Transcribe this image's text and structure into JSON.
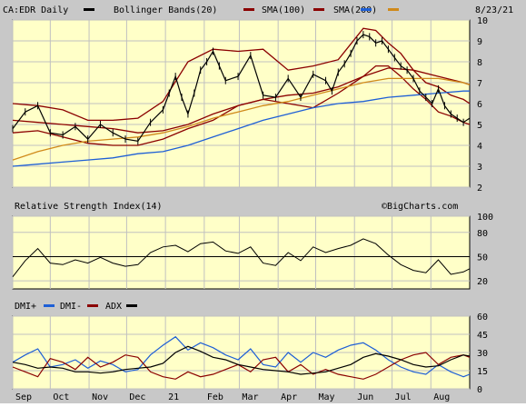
{
  "chart_data": [
    {
      "type": "line",
      "title": "CA:EDR Daily",
      "date": "8/23/21",
      "legend": [
        {
          "name": "CA:EDR Daily",
          "color": "#000000"
        },
        {
          "name": "Bollinger Bands(20)",
          "color": "#8b0000"
        },
        {
          "name": "SMA(100)",
          "color": "#8b0000"
        },
        {
          "name": "SMA(200)",
          "color": "#d08a1a"
        },
        {
          "name": "",
          "color": "#1e5fd6"
        }
      ],
      "ylim": [
        2,
        10
      ],
      "yticks": [
        2,
        3,
        4,
        5,
        6,
        7,
        8,
        9,
        10
      ],
      "x_labels": [
        {
          "label": "Sep",
          "day": 0
        },
        {
          "label": "Oct",
          "day": 30
        },
        {
          "label": "Nov",
          "day": 61
        },
        {
          "label": "Dec",
          "day": 91
        },
        {
          "label": "21",
          "day": 122
        },
        {
          "label": "Feb",
          "day": 153
        },
        {
          "label": "Mar",
          "day": 181
        },
        {
          "label": "Apr",
          "day": 212
        },
        {
          "label": "May",
          "day": 242
        },
        {
          "label": "Jun",
          "day": 273
        },
        {
          "label": "Jul",
          "day": 303
        },
        {
          "label": "Aug",
          "day": 334
        }
      ],
      "series": [
        {
          "name": "CA:EDR Daily",
          "x": [
            0,
            10,
            20,
            30,
            40,
            50,
            60,
            70,
            80,
            90,
            100,
            110,
            120,
            125,
            130,
            135,
            140,
            145,
            150,
            155,
            160,
            165,
            170,
            180,
            190,
            200,
            210,
            220,
            230,
            240,
            250,
            255,
            260,
            265,
            270,
            275,
            280,
            285,
            290,
            295,
            300,
            305,
            310,
            315,
            320,
            325,
            330,
            335,
            340,
            345,
            350,
            355,
            360,
            365
          ],
          "values": [
            4.8,
            5.6,
            5.9,
            4.6,
            4.5,
            4.9,
            4.3,
            5.0,
            4.6,
            4.3,
            4.2,
            5.1,
            5.7,
            6.5,
            7.3,
            6.3,
            5.5,
            6.5,
            7.6,
            8.0,
            8.5,
            7.8,
            7.1,
            7.3,
            8.3,
            6.4,
            6.3,
            7.2,
            6.3,
            7.4,
            7.1,
            6.6,
            7.5,
            7.9,
            8.4,
            9.0,
            9.3,
            9.2,
            8.9,
            9.0,
            8.6,
            8.2,
            7.8,
            7.6,
            7.2,
            6.6,
            6.3,
            6.0,
            6.7,
            5.9,
            5.5,
            5.3,
            5.1,
            5.3
          ]
        },
        {
          "name": "Bollinger Upper",
          "x": [
            0,
            20,
            40,
            60,
            80,
            100,
            120,
            140,
            160,
            180,
            200,
            220,
            240,
            260,
            280,
            290,
            300,
            310,
            320,
            330,
            340,
            350,
            360,
            365
          ],
          "values": [
            6.0,
            5.9,
            5.7,
            5.2,
            5.2,
            5.3,
            6.1,
            8.0,
            8.6,
            8.5,
            8.6,
            7.6,
            7.8,
            8.1,
            9.6,
            9.5,
            8.9,
            8.4,
            7.6,
            7.0,
            6.8,
            6.4,
            6.2,
            6.0
          ]
        },
        {
          "name": "Bollinger Lower",
          "x": [
            0,
            20,
            40,
            60,
            80,
            100,
            120,
            140,
            160,
            180,
            200,
            220,
            240,
            260,
            280,
            290,
            300,
            310,
            320,
            330,
            340,
            350,
            360,
            365
          ],
          "values": [
            4.6,
            4.7,
            4.4,
            4.1,
            4.0,
            4.0,
            4.3,
            4.8,
            5.2,
            5.9,
            6.2,
            6.0,
            5.8,
            6.5,
            7.3,
            7.8,
            7.8,
            7.3,
            6.7,
            6.2,
            5.6,
            5.4,
            5.1,
            5.0
          ]
        },
        {
          "name": "SMA(100)",
          "x": [
            0,
            20,
            40,
            60,
            80,
            100,
            120,
            140,
            160,
            180,
            200,
            220,
            240,
            260,
            280,
            300,
            320,
            340,
            360,
            365
          ],
          "values": [
            5.2,
            5.1,
            5.0,
            4.9,
            4.8,
            4.6,
            4.7,
            5.0,
            5.5,
            5.9,
            6.2,
            6.4,
            6.5,
            6.8,
            7.3,
            7.7,
            7.6,
            7.3,
            7.0,
            6.9
          ]
        },
        {
          "name": "SMA(200)",
          "x": [
            0,
            20,
            40,
            60,
            80,
            100,
            120,
            140,
            160,
            180,
            200,
            220,
            240,
            260,
            280,
            300,
            320,
            340,
            360,
            365
          ],
          "values": [
            3.3,
            3.7,
            4.0,
            4.2,
            4.3,
            4.4,
            4.6,
            4.9,
            5.3,
            5.6,
            5.9,
            6.1,
            6.4,
            6.7,
            7.0,
            7.2,
            7.2,
            7.2,
            7.0,
            6.9
          ]
        },
        {
          "name": "",
          "x": [
            0,
            20,
            40,
            60,
            80,
            100,
            120,
            140,
            160,
            180,
            200,
            220,
            240,
            260,
            280,
            300,
            320,
            340,
            360,
            365
          ],
          "values": [
            3.0,
            3.1,
            3.2,
            3.3,
            3.4,
            3.6,
            3.7,
            4.0,
            4.4,
            4.8,
            5.2,
            5.5,
            5.8,
            6.0,
            6.1,
            6.3,
            6.4,
            6.5,
            6.6,
            6.6
          ]
        }
      ]
    },
    {
      "type": "line",
      "title": "Relative Strength Index(14)",
      "watermark": "©BigCharts.com",
      "ylim": [
        10,
        100
      ],
      "yticks": [
        20,
        50,
        80,
        100
      ],
      "reference_line": 50,
      "series": [
        {
          "name": "RSI",
          "x": [
            0,
            10,
            20,
            30,
            40,
            50,
            60,
            70,
            80,
            90,
            100,
            110,
            120,
            130,
            140,
            150,
            160,
            170,
            180,
            190,
            200,
            210,
            220,
            230,
            240,
            250,
            260,
            270,
            280,
            290,
            300,
            310,
            320,
            330,
            340,
            350,
            360,
            365
          ],
          "values": [
            25,
            45,
            60,
            42,
            40,
            46,
            42,
            49,
            42,
            38,
            40,
            55,
            62,
            64,
            56,
            66,
            68,
            57,
            54,
            62,
            42,
            39,
            55,
            45,
            62,
            55,
            60,
            64,
            72,
            66,
            52,
            40,
            33,
            30,
            46,
            28,
            31,
            35
          ]
        }
      ]
    },
    {
      "type": "line",
      "title": "",
      "ylim": [
        0,
        60
      ],
      "yticks": [
        0,
        15,
        30,
        45,
        60
      ],
      "legend": [
        {
          "name": "DMI+",
          "color": "#1e5fd6"
        },
        {
          "name": "DMI-",
          "color": "#8b0000"
        },
        {
          "name": "ADX",
          "color": "#000000"
        }
      ],
      "series": [
        {
          "name": "DMI+",
          "x": [
            0,
            10,
            20,
            30,
            40,
            50,
            60,
            70,
            80,
            90,
            100,
            110,
            120,
            130,
            140,
            150,
            160,
            170,
            180,
            190,
            200,
            210,
            220,
            230,
            240,
            250,
            260,
            270,
            280,
            290,
            300,
            310,
            320,
            330,
            340,
            350,
            360,
            365
          ],
          "values": [
            22,
            28,
            33,
            18,
            20,
            24,
            17,
            23,
            20,
            14,
            16,
            28,
            36,
            43,
            32,
            38,
            34,
            28,
            24,
            33,
            20,
            18,
            30,
            22,
            30,
            26,
            32,
            36,
            38,
            32,
            24,
            18,
            14,
            12,
            20,
            14,
            10,
            12
          ]
        },
        {
          "name": "DMI-",
          "x": [
            0,
            10,
            20,
            30,
            40,
            50,
            60,
            70,
            80,
            90,
            100,
            110,
            120,
            130,
            140,
            150,
            160,
            170,
            180,
            190,
            200,
            210,
            220,
            230,
            240,
            250,
            260,
            270,
            280,
            290,
            300,
            310,
            320,
            330,
            340,
            350,
            360,
            365
          ],
          "values": [
            18,
            14,
            10,
            25,
            22,
            16,
            26,
            18,
            22,
            28,
            26,
            14,
            10,
            8,
            14,
            10,
            12,
            16,
            20,
            14,
            24,
            26,
            14,
            20,
            12,
            16,
            12,
            10,
            8,
            12,
            18,
            24,
            28,
            30,
            20,
            26,
            28,
            26
          ]
        },
        {
          "name": "ADX",
          "x": [
            0,
            10,
            20,
            30,
            40,
            50,
            60,
            70,
            80,
            90,
            100,
            110,
            120,
            130,
            140,
            150,
            160,
            170,
            180,
            190,
            200,
            210,
            220,
            230,
            240,
            250,
            260,
            270,
            280,
            290,
            300,
            310,
            320,
            330,
            340,
            350,
            360,
            365
          ],
          "values": [
            22,
            20,
            17,
            18,
            17,
            14,
            14,
            13,
            14,
            16,
            17,
            18,
            21,
            30,
            35,
            31,
            26,
            24,
            20,
            18,
            16,
            15,
            14,
            12,
            13,
            14,
            17,
            20,
            26,
            29,
            27,
            24,
            20,
            18,
            19,
            24,
            28,
            27
          ]
        }
      ]
    }
  ]
}
